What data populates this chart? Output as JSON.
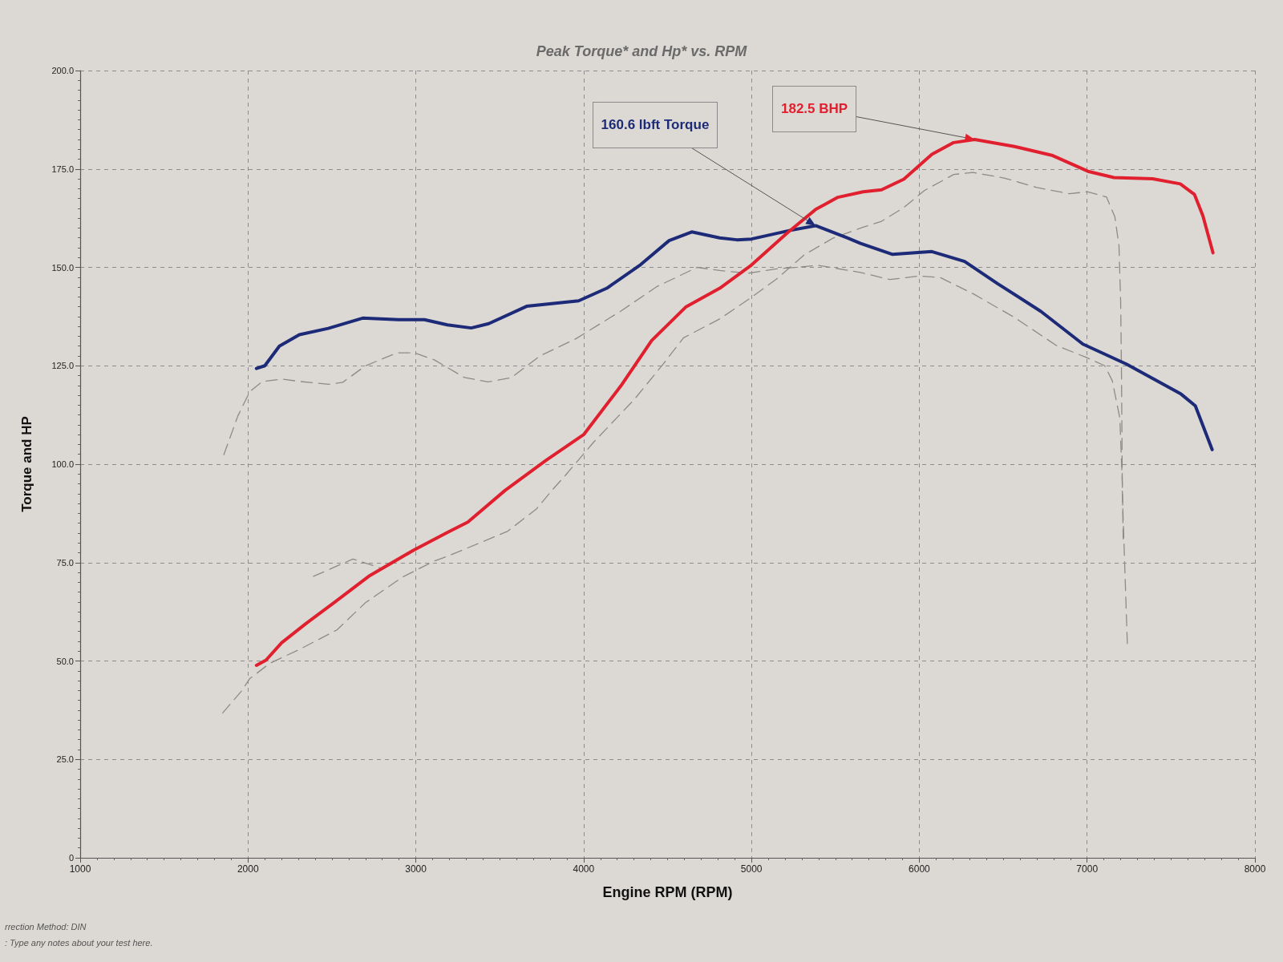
{
  "chart_data": {
    "type": "line",
    "title": "Peak Torque* and Hp* vs. RPM",
    "xlabel": "Engine RPM (RPM)",
    "ylabel": "Torque and HP",
    "xlim": [
      1000,
      8000
    ],
    "xticks": [
      1000,
      2000,
      3000,
      4000,
      5000,
      6000,
      7000,
      8000
    ],
    "ylim": [
      0,
      200
    ],
    "yticks": [
      0,
      {
        "value": 25,
        "label": "25.0"
      },
      {
        "value": 50,
        "label": "50.0"
      },
      {
        "value": 75,
        "label": "75.0"
      },
      {
        "value": 100,
        "label": "100.0"
      },
      {
        "value": 125,
        "label": "125.0"
      },
      {
        "value": 150,
        "label": "150.0"
      },
      {
        "value": 175,
        "label": "175.0"
      },
      {
        "value": 200,
        "label": "200.0"
      }
    ],
    "grid": true,
    "marker": "none",
    "line_style": "solid",
    "series": [
      {
        "color": "#8f8a84",
        "line_style": "dashed",
        "x": [
          1856,
          1940,
          2010,
          2085,
          2205,
          2310,
          2480,
          2565,
          2700,
          2890,
          2990,
          3110,
          3170,
          3290,
          3430,
          3570,
          3740,
          3955,
          4222,
          4440,
          4677,
          4811,
          4980,
          5148,
          5400,
          5650,
          5825,
          5995,
          6125,
          6325,
          6570,
          6815,
          6990,
          7105,
          7150,
          7195,
          7210,
          7215
        ],
        "values": [
          102.4,
          112.3,
          118.4,
          121,
          121.6,
          121,
          120.3,
          120.8,
          125,
          128.3,
          128.3,
          126.5,
          125,
          122,
          120.9,
          122,
          127.5,
          131.9,
          138.9,
          145.2,
          150,
          149.2,
          148.5,
          149.6,
          150.5,
          148.7,
          146.9,
          147.8,
          147.4,
          143.2,
          137.2,
          130.2,
          127.2,
          125,
          121.2,
          111.7,
          95,
          81
        ]
      },
      {
        "color": "#8f8a84",
        "line_style": "dashed",
        "x": [
          1849,
          1960,
          2010,
          2130,
          2310,
          2530,
          2700,
          2920,
          3110,
          3200,
          3545,
          3718,
          3810,
          3890,
          4060,
          4305,
          4475,
          4595,
          4811,
          4980,
          5148,
          5315,
          5485,
          5665,
          5775,
          5908,
          6030,
          6205,
          6320,
          6505,
          6700,
          6895,
          7000,
          7115,
          7165,
          7190,
          7200,
          7205,
          7210,
          7240
        ],
        "values": [
          36.8,
          42.3,
          45.5,
          49.4,
          53,
          57.9,
          64.8,
          71.3,
          75.4,
          76.8,
          82.9,
          88.6,
          93.3,
          97.1,
          105.6,
          116.6,
          125.5,
          132.1,
          136.9,
          141.8,
          147,
          153.2,
          157.4,
          160.2,
          161.7,
          165.2,
          169.5,
          173.6,
          174.1,
          172.7,
          170.3,
          168.7,
          169.2,
          167.9,
          162.9,
          155.5,
          141,
          122.6,
          92.4,
          54
        ]
      },
      {
        "color": "#8f8a84",
        "line_style": "dashed",
        "x": [
          2390,
          2625,
          2785
        ],
        "values": [
          71.5,
          75.9,
          73.7
        ]
      },
      {
        "color": "#1c2a78",
        "x": [
          2050,
          2100,
          2187,
          2306,
          2478,
          2683,
          2897,
          3051,
          3188,
          3330,
          3434,
          3660,
          3970,
          4138,
          4340,
          4509,
          4644,
          4811,
          4913,
          5000,
          5231,
          5382,
          5570,
          5650,
          5841,
          6075,
          6270,
          6465,
          6725,
          6975,
          7235,
          7560,
          7645,
          7745
        ],
        "values": [
          124.3,
          125,
          130,
          132.9,
          134.5,
          137.1,
          136.7,
          136.7,
          135.4,
          134.6,
          135.7,
          140.1,
          141.5,
          144.7,
          150.7,
          156.8,
          159,
          157.5,
          157,
          157.2,
          159.4,
          160.6,
          157.5,
          156.1,
          153.3,
          154,
          151.5,
          145.9,
          138.8,
          130.5,
          125.4,
          117.8,
          114.8,
          103.7
        ]
      },
      {
        "color": "#e0202e",
        "x": [
          2050,
          2107,
          2200,
          2345,
          2512,
          2726,
          2985,
          3185,
          3310,
          3531,
          3773,
          4000,
          4222,
          4405,
          4608,
          4811,
          5000,
          5215,
          5382,
          5515,
          5665,
          5775,
          5908,
          6075,
          6205,
          6330,
          6567,
          6795,
          7005,
          7160,
          7390,
          7555,
          7640,
          7690,
          7750
        ],
        "values": [
          48.9,
          50.2,
          54.6,
          59.5,
          64.8,
          71.7,
          78.1,
          82.6,
          85.3,
          93.3,
          100.9,
          107.5,
          119.9,
          131.4,
          139.9,
          144.7,
          150.6,
          158.8,
          164.7,
          167.8,
          169.2,
          169.7,
          172.4,
          178.7,
          181.7,
          182.5,
          180.7,
          178.4,
          174.4,
          172.8,
          172.5,
          171.2,
          168.5,
          163.1,
          153.7
        ]
      }
    ],
    "annotations": [
      {
        "text": "160.6 lbft Torque",
        "x": 5382,
        "y": 160.6
      },
      {
        "text": "182.5 BHP",
        "x": 6330,
        "y": 182.5
      },
      "rrection Method: DIN",
      ": Type any notes about your test here."
    ]
  }
}
